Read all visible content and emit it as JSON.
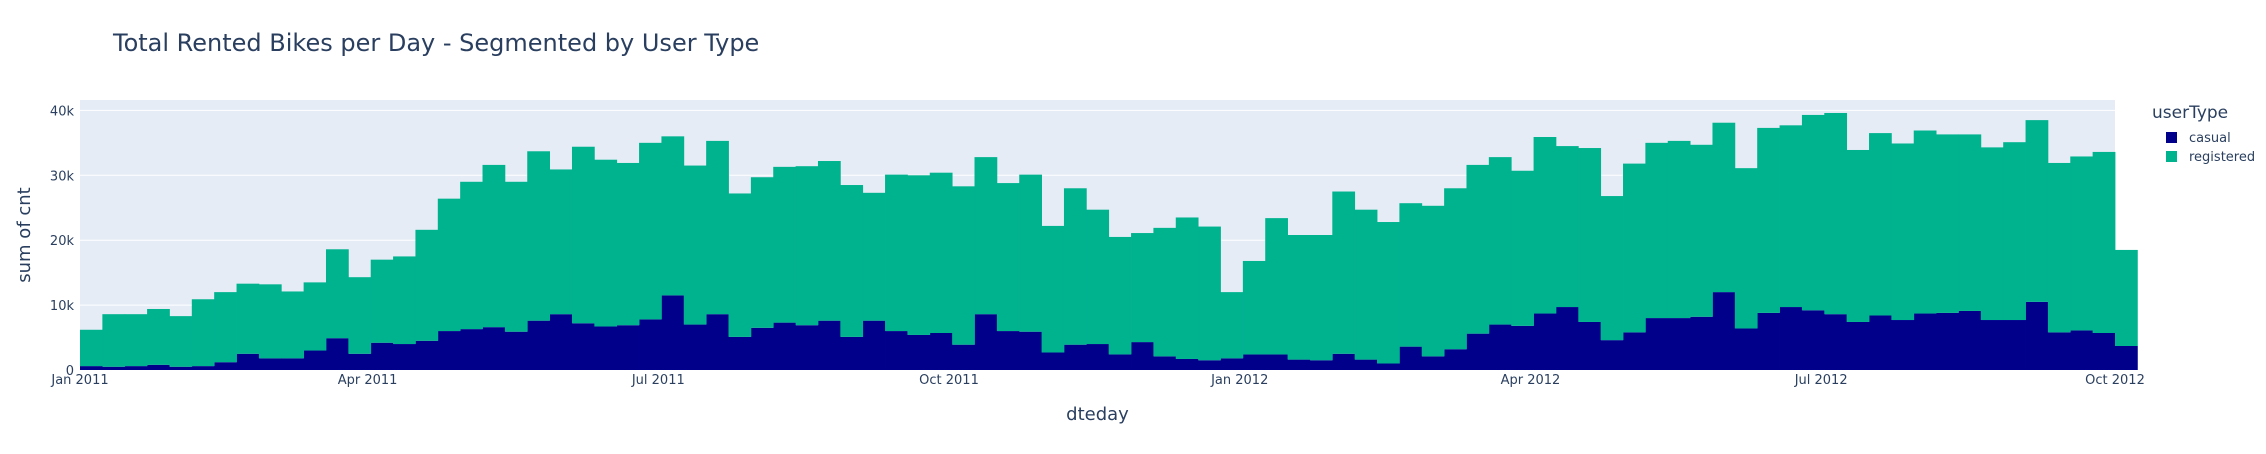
{
  "chart_data": {
    "type": "bar",
    "barmode": "stack",
    "title": "Total Rented Bikes per Day - Segmented by User Type",
    "xlabel": "dteday",
    "ylabel": "sum of cnt",
    "x_start": "Jan 2011",
    "x_end": "Oct 2012",
    "bin": "week",
    "xlim": [
      0,
      91
    ],
    "ylim": [
      0,
      41600
    ],
    "yticks": [
      0,
      10000,
      20000,
      30000,
      40000
    ],
    "ytick_labels": [
      "0",
      "10k",
      "20k",
      "30k",
      "40k"
    ],
    "xticks": [
      0,
      12.86,
      25.86,
      38.86,
      51.86,
      64.86,
      77.86,
      91
    ],
    "xtick_labels": [
      "Jan 2011",
      "Apr 2011",
      "Jul 2011",
      "Oct 2011",
      "Jan 2012",
      "Apr 2012",
      "Jul 2012",
      "Oct 2012"
    ],
    "legend": {
      "title": "userType",
      "placement": "right"
    },
    "series": [
      {
        "name": "casual",
        "color": "#00008b",
        "values": [
          600,
          500,
          600,
          800,
          500,
          600,
          1200,
          2500,
          1800,
          1800,
          3000,
          4900,
          2500,
          4200,
          4000,
          4500,
          6000,
          6300,
          6600,
          5900,
          7600,
          8600,
          7200,
          6700,
          6900,
          7800,
          11500,
          7000,
          8600,
          5100,
          6500,
          7300,
          6900,
          7600,
          5100,
          7600,
          6000,
          5400,
          5700,
          3900,
          8600,
          6000,
          5900,
          2700,
          3900,
          4000,
          2400,
          4300,
          2100,
          1700,
          1500,
          1800,
          2400,
          2400,
          1600,
          1500,
          2500,
          1600,
          1000,
          3600,
          2100,
          3200,
          5600,
          7000,
          6800,
          8700,
          9700,
          7400,
          4600,
          5800,
          8000,
          8000,
          8200,
          12000,
          6400,
          8800,
          9700,
          9200,
          8600,
          7400,
          8400,
          7700,
          8700,
          8800,
          9100,
          7700,
          7700,
          10500,
          5800,
          6100,
          5700,
          3700
        ]
      },
      {
        "name": "registered",
        "color": "#00b38f",
        "values": [
          5600,
          8100,
          8000,
          8600,
          7800,
          10300,
          10800,
          10800,
          11400,
          10300,
          10500,
          13700,
          11800,
          12800,
          13500,
          17100,
          20400,
          22700,
          25000,
          23100,
          26100,
          22300,
          27200,
          25700,
          25000,
          27200,
          24500,
          24500,
          26700,
          22100,
          23200,
          24000,
          24500,
          24600,
          23400,
          19700,
          24100,
          24600,
          24700,
          24400,
          24200,
          22800,
          24200,
          19500,
          24100,
          20700,
          18100,
          16800,
          19800,
          21800,
          20600,
          10200,
          14400,
          21000,
          19200,
          19300,
          25000,
          23100,
          21800,
          22100,
          23200,
          24800,
          26000,
          25800,
          23900,
          27200,
          24800,
          26800,
          22200,
          26000,
          27000,
          27300,
          26500,
          26100,
          24700,
          28500,
          28000,
          30100,
          31000,
          26500,
          28100,
          27200,
          28200,
          27500,
          27200,
          26600,
          27400,
          28000,
          26100,
          26800,
          27900,
          14800
        ]
      }
    ]
  }
}
